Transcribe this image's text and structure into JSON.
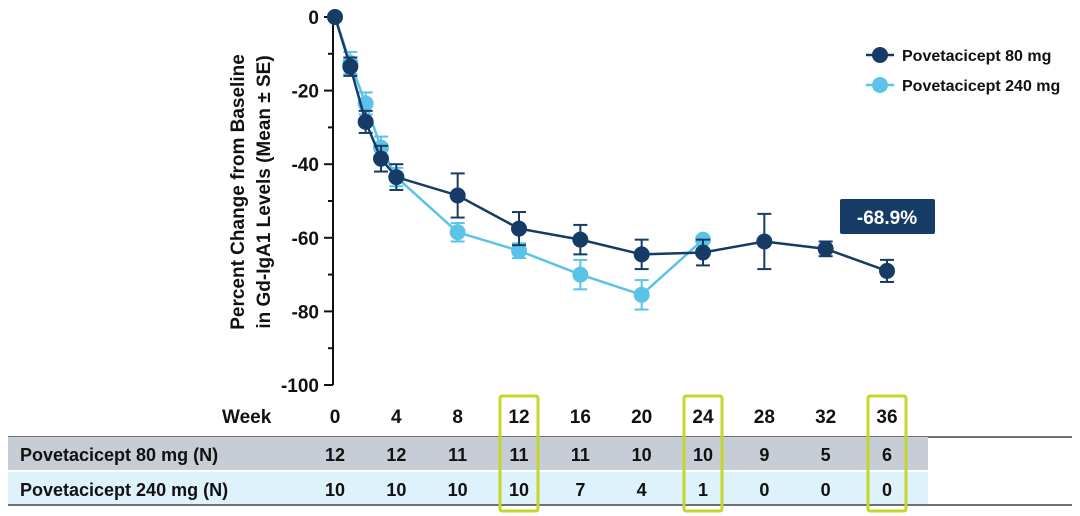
{
  "chart_data": {
    "type": "line",
    "ylabel_line1": "Percent Change from Baseline",
    "ylabel_line2": "in Gd-IgA1 Levels (Mean ± SE)",
    "xlabel": "Week",
    "ylim": [
      -100,
      0
    ],
    "yticks": [
      0,
      -20,
      -40,
      -60,
      -80,
      -100
    ],
    "xlim": [
      0,
      36
    ],
    "xticks": [
      0,
      4,
      8,
      12,
      16,
      20,
      24,
      28,
      32,
      36
    ],
    "highlight_weeks": [
      12,
      24,
      36
    ],
    "series": [
      {
        "name": "Povetacicept 80 mg",
        "color": "#163b66",
        "x": [
          0,
          1,
          2,
          3,
          4,
          8,
          12,
          16,
          20,
          24,
          28,
          32,
          36
        ],
        "y": [
          0,
          -13.5,
          -28.5,
          -38.5,
          -43.5,
          -48.5,
          -57.5,
          -60.5,
          -64.5,
          -64,
          -61,
          -63,
          -69
        ],
        "se": [
          0,
          2.5,
          3,
          3.5,
          3.5,
          6,
          4.5,
          4,
          4,
          3.5,
          7.5,
          2,
          3
        ]
      },
      {
        "name": "Povetacicept 240 mg",
        "color": "#5bc3e8",
        "x": [
          0,
          1,
          2,
          3,
          4,
          8,
          12,
          16,
          20,
          24
        ],
        "y": [
          0,
          -12.5,
          -23.5,
          -35.5,
          -43.5,
          -58.5,
          -63.5,
          -70,
          -75.5,
          -60.5
        ],
        "se": [
          0,
          3,
          3,
          3,
          2.5,
          2.5,
          2,
          4,
          4,
          0
        ]
      }
    ],
    "callout": "-68.9%",
    "callout_color": "#163b66",
    "table": {
      "rows": [
        {
          "label": "Povetacicept 80 mg (N)",
          "values": [
            "12",
            "12",
            "11",
            "11",
            "11",
            "10",
            "10",
            "9",
            "5",
            "6"
          ],
          "bg": "#c6cdd6"
        },
        {
          "label": "Povetacicept 240 mg (N)",
          "values": [
            "10",
            "10",
            "10",
            "10",
            "7",
            "4",
            "1",
            "0",
            "0",
            "0"
          ],
          "bg": "#ddf2fb"
        }
      ]
    },
    "highlight_color": "#c4d62c"
  }
}
